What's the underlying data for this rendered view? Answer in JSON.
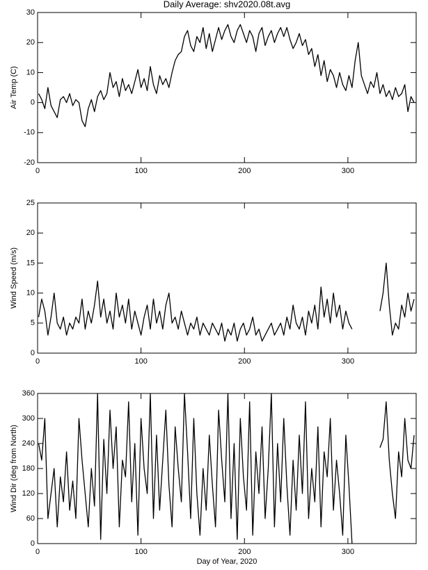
{
  "chart_data": [
    {
      "type": "line",
      "title": "Daily Average: shv2020.08t.avg",
      "ylabel": "Air Temp (C)",
      "color": "#000000",
      "xlim": [
        0,
        366
      ],
      "xticks": [
        0,
        100,
        200,
        300
      ],
      "ylim": [
        -20,
        30
      ],
      "yticks": [
        -20,
        -10,
        0,
        10,
        20,
        30
      ],
      "x": [
        1,
        4,
        7,
        10,
        13,
        16,
        19,
        22,
        25,
        28,
        31,
        34,
        37,
        40,
        43,
        46,
        49,
        52,
        55,
        58,
        61,
        64,
        67,
        70,
        73,
        76,
        79,
        82,
        85,
        88,
        91,
        94,
        97,
        100,
        103,
        106,
        109,
        112,
        115,
        118,
        121,
        124,
        127,
        130,
        133,
        136,
        139,
        142,
        145,
        148,
        151,
        154,
        157,
        160,
        163,
        166,
        169,
        172,
        175,
        178,
        181,
        184,
        187,
        190,
        193,
        196,
        199,
        202,
        205,
        208,
        211,
        214,
        217,
        220,
        223,
        226,
        229,
        232,
        235,
        238,
        241,
        244,
        247,
        250,
        253,
        256,
        259,
        262,
        265,
        268,
        271,
        274,
        277,
        280,
        283,
        286,
        289,
        292,
        295,
        298,
        301,
        304,
        307,
        310,
        313,
        316,
        319,
        322,
        325,
        328,
        331,
        334,
        337,
        340,
        343,
        346,
        349,
        352,
        355,
        358,
        361,
        364
      ],
      "values": [
        3,
        1,
        -2,
        5,
        -1,
        -3,
        -5,
        1,
        2,
        0,
        3,
        -1,
        1,
        0,
        -6,
        -8,
        -2,
        1,
        -3,
        2,
        4,
        1,
        3,
        10,
        5,
        7,
        2,
        8,
        4,
        6,
        3,
        7,
        11,
        5,
        8,
        4,
        12,
        6,
        3,
        9,
        6,
        8,
        5,
        10,
        14,
        16,
        17,
        22,
        24,
        19,
        17,
        22,
        20,
        25,
        18,
        23,
        17,
        21,
        25,
        21,
        24,
        26,
        22,
        20,
        24,
        26,
        23,
        20,
        24,
        22,
        17,
        23,
        25,
        19,
        22,
        24,
        20,
        23,
        25,
        22,
        25,
        21,
        18,
        20,
        23,
        19,
        21,
        16,
        18,
        12,
        16,
        9,
        14,
        7,
        11,
        9,
        5,
        10,
        6,
        4,
        9,
        5,
        14,
        20,
        9,
        6,
        3,
        7,
        5,
        10,
        3,
        6,
        2,
        4,
        1,
        5,
        2,
        3,
        6,
        -3,
        2,
        0
      ]
    },
    {
      "type": "line",
      "ylabel": "Wind Speed (m/s)",
      "color": "#000000",
      "xlim": [
        0,
        366
      ],
      "xticks": [
        0,
        100,
        200,
        300
      ],
      "ylim": [
        0,
        25
      ],
      "yticks": [
        0,
        5,
        10,
        15,
        20,
        25
      ],
      "x": [
        1,
        4,
        7,
        10,
        13,
        16,
        19,
        22,
        25,
        28,
        31,
        34,
        37,
        40,
        43,
        46,
        49,
        52,
        55,
        58,
        61,
        64,
        67,
        70,
        73,
        76,
        79,
        82,
        85,
        88,
        91,
        94,
        97,
        100,
        103,
        106,
        109,
        112,
        115,
        118,
        121,
        124,
        127,
        130,
        133,
        136,
        139,
        142,
        145,
        148,
        151,
        154,
        157,
        160,
        163,
        166,
        169,
        172,
        175,
        178,
        181,
        184,
        187,
        190,
        193,
        196,
        199,
        202,
        205,
        208,
        211,
        214,
        217,
        220,
        223,
        226,
        229,
        232,
        235,
        238,
        241,
        244,
        247,
        250,
        253,
        256,
        259,
        262,
        265,
        268,
        271,
        274,
        277,
        280,
        283,
        286,
        289,
        292,
        295,
        298,
        301,
        304,
        307,
        310,
        313,
        316,
        319,
        322,
        325,
        328,
        331,
        334,
        337,
        340,
        343,
        346,
        349,
        352,
        355,
        358,
        361,
        364
      ],
      "values": [
        6,
        9,
        7,
        3,
        6,
        10,
        5,
        4,
        6,
        3,
        5,
        4,
        6,
        5,
        9,
        4,
        7,
        5,
        8,
        12,
        6,
        9,
        5,
        7,
        4,
        10,
        6,
        8,
        5,
        9,
        4,
        7,
        5,
        3,
        6,
        8,
        4,
        9,
        5,
        7,
        4,
        8,
        10,
        5,
        6,
        4,
        7,
        5,
        3,
        5,
        4,
        6,
        3,
        5,
        4,
        3,
        5,
        4,
        3,
        5,
        2,
        4,
        3,
        5,
        2,
        4,
        5,
        3,
        4,
        6,
        3,
        4,
        2,
        3,
        4,
        5,
        3,
        4,
        5,
        3,
        6,
        4,
        8,
        5,
        4,
        6,
        3,
        7,
        5,
        8,
        4,
        11,
        6,
        9,
        5,
        10,
        6,
        8,
        4,
        7,
        5,
        4,
        null,
        null,
        null,
        null,
        null,
        null,
        null,
        null,
        7,
        10,
        15,
        8,
        3,
        5,
        4,
        8,
        6,
        10,
        7,
        9
      ]
    },
    {
      "type": "line",
      "ylabel": "Wind Dir (deg from North)",
      "xlabel": "Day of Year, 2020",
      "color": "#000000",
      "xlim": [
        0,
        366
      ],
      "xticks": [
        0,
        100,
        200,
        300
      ],
      "ylim": [
        0,
        360
      ],
      "yticks": [
        0,
        60,
        120,
        180,
        240,
        300,
        360
      ],
      "x": [
        1,
        4,
        7,
        10,
        13,
        16,
        19,
        22,
        25,
        28,
        31,
        34,
        37,
        40,
        43,
        46,
        49,
        52,
        55,
        58,
        61,
        64,
        67,
        70,
        73,
        76,
        79,
        82,
        85,
        88,
        91,
        94,
        97,
        100,
        103,
        106,
        109,
        112,
        115,
        118,
        121,
        124,
        127,
        130,
        133,
        136,
        139,
        142,
        145,
        148,
        151,
        154,
        157,
        160,
        163,
        166,
        169,
        172,
        175,
        178,
        181,
        184,
        187,
        190,
        193,
        196,
        199,
        202,
        205,
        208,
        211,
        214,
        217,
        220,
        223,
        226,
        229,
        232,
        235,
        238,
        241,
        244,
        247,
        250,
        253,
        256,
        259,
        262,
        265,
        268,
        271,
        274,
        277,
        280,
        283,
        286,
        289,
        292,
        295,
        298,
        301,
        304,
        307,
        310,
        313,
        316,
        319,
        322,
        325,
        328,
        331,
        334,
        337,
        340,
        343,
        346,
        349,
        352,
        355,
        358,
        361,
        364
      ],
      "values": [
        240,
        200,
        300,
        60,
        120,
        180,
        40,
        160,
        100,
        220,
        80,
        150,
        60,
        300,
        200,
        120,
        40,
        180,
        90,
        360,
        10,
        250,
        120,
        320,
        180,
        280,
        40,
        200,
        160,
        340,
        100,
        240,
        20,
        300,
        180,
        120,
        360,
        60,
        260,
        80,
        200,
        320,
        140,
        40,
        280,
        180,
        100,
        360,
        220,
        60,
        300,
        120,
        20,
        180,
        80,
        260,
        140,
        40,
        320,
        200,
        100,
        360,
        60,
        240,
        10,
        300,
        160,
        80,
        340,
        20,
        220,
        120,
        280,
        60,
        180,
        360,
        40,
        240,
        100,
        300,
        140,
        20,
        200,
        80,
        260,
        120,
        340,
        60,
        180,
        100,
        280,
        40,
        220,
        160,
        300,
        80,
        200,
        120,
        20,
        260,
        140,
        0,
        null,
        null,
        null,
        null,
        null,
        null,
        null,
        null,
        230,
        250,
        340,
        200,
        120,
        60,
        220,
        160,
        300,
        200,
        180,
        260
      ]
    }
  ]
}
